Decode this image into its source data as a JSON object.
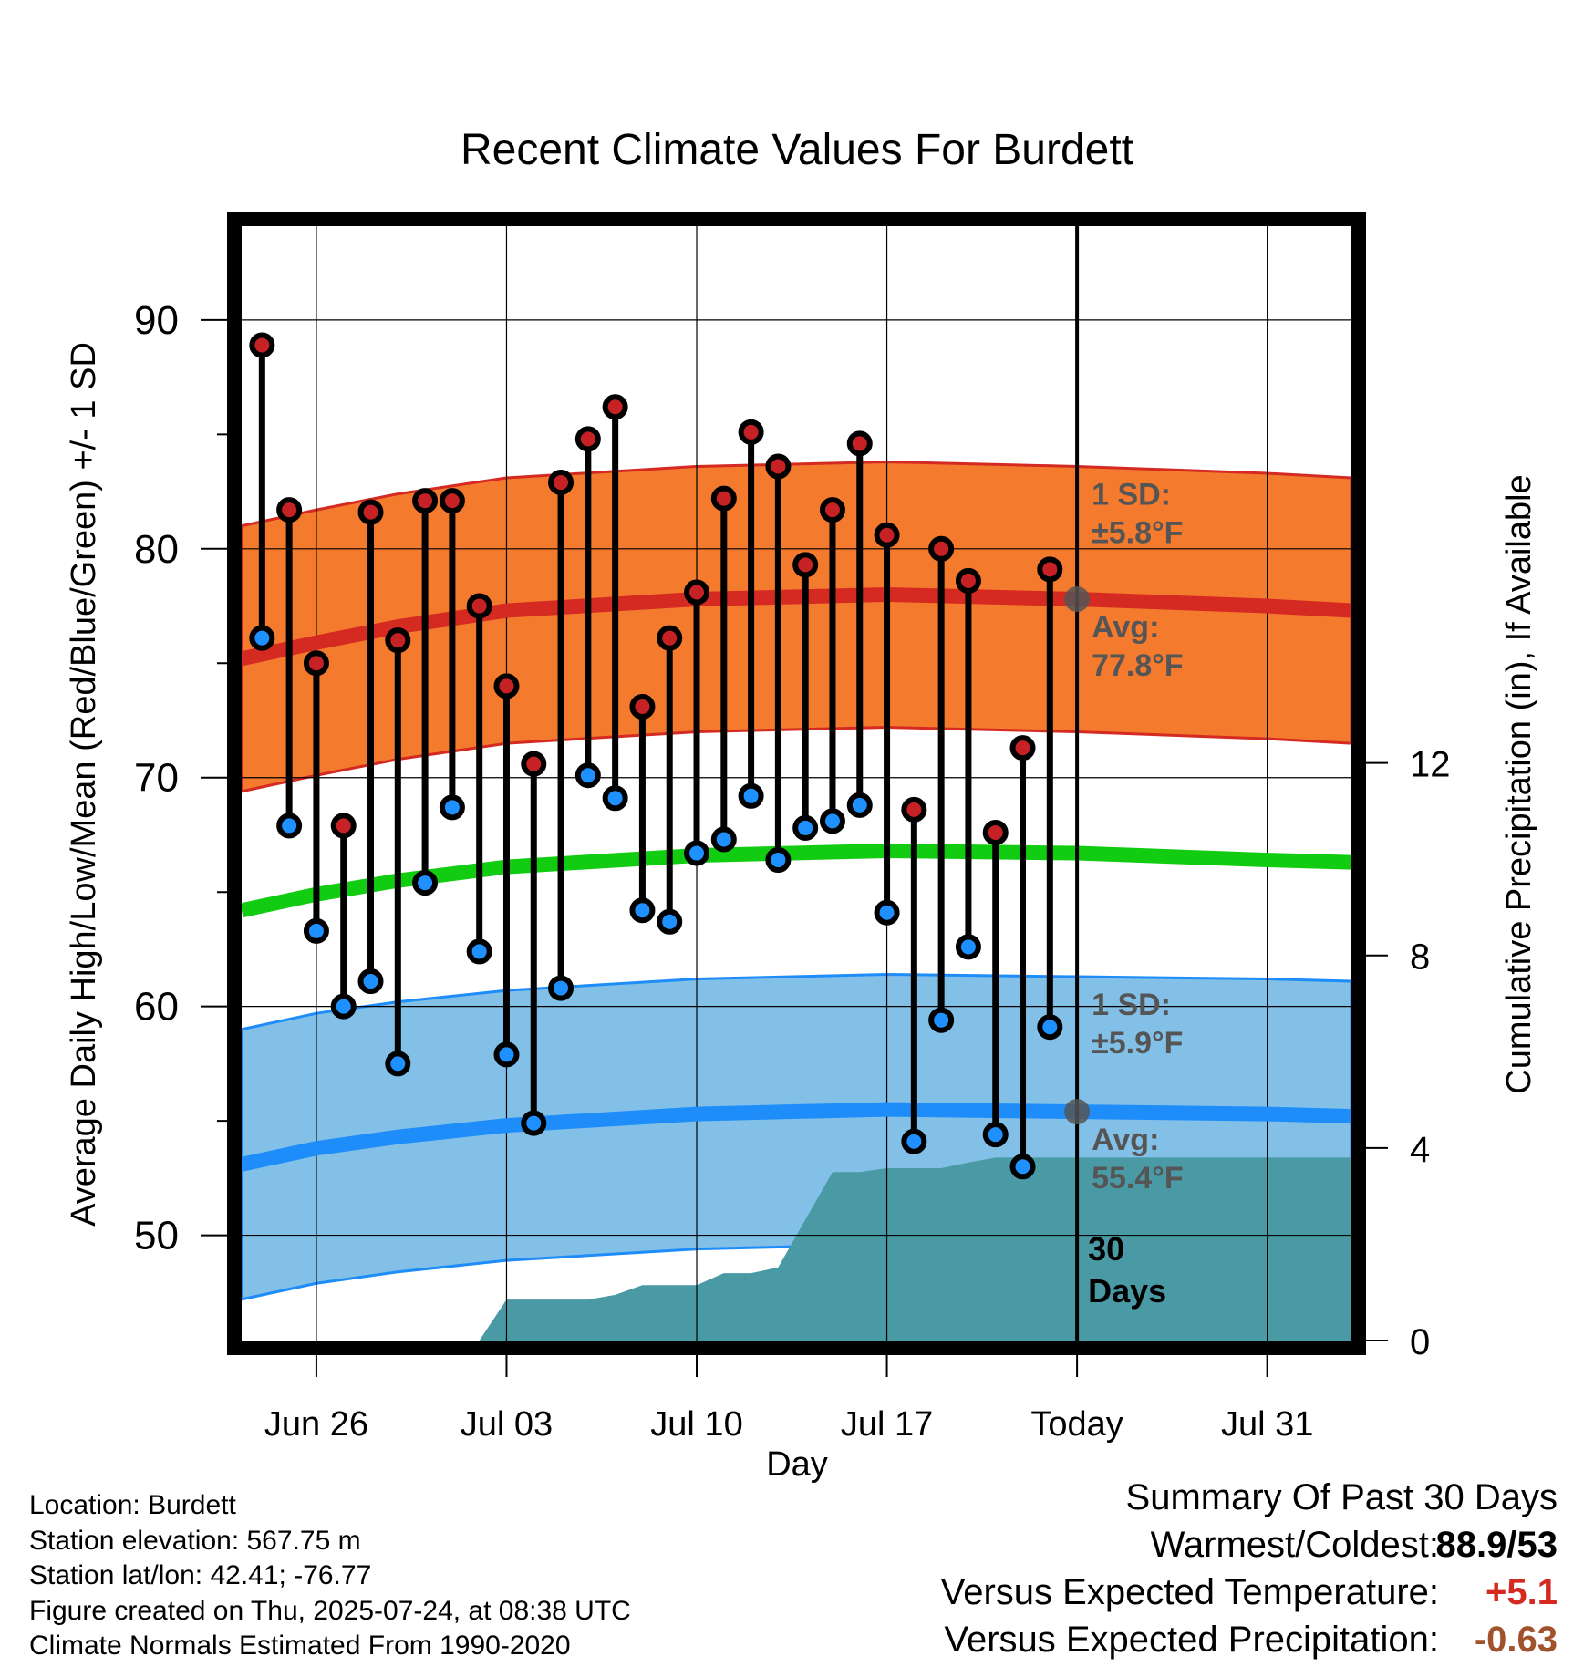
{
  "chart_data": {
    "type": "line",
    "title": "Recent Climate Values For Burdett",
    "xlabel": "Day",
    "ylabel": "Average Daily High/Low/Mean (Red/Blue/Green) +/- 1 SD",
    "y2label": "Cumulative Precipitation (in), If Available",
    "x_tick_labels": [
      "Jun 26",
      "Jul 03",
      "Jul 10",
      "Jul 17",
      "Today",
      "Jul 31"
    ],
    "x_ticks_day_index": [
      3,
      10,
      17,
      24,
      31,
      38
    ],
    "xlim_day_index": [
      0.25,
      41.1
    ],
    "y_ticks": [
      50,
      60,
      70,
      80,
      90
    ],
    "ylim": [
      45.4,
      94.1
    ],
    "y2_ticks": [
      0,
      4,
      8,
      12
    ],
    "y2lim": [
      0,
      23.15
    ],
    "grid": true,
    "today_day_index": 31,
    "window_label": [
      "30",
      "Days"
    ],
    "days_index": [
      1,
      2,
      3,
      4,
      5,
      6,
      7,
      8,
      9,
      10,
      11,
      12,
      13,
      14,
      15,
      16,
      17,
      18,
      19,
      20,
      21,
      22,
      23,
      24,
      25,
      26,
      27,
      28,
      29,
      30
    ],
    "highs": [
      88.9,
      81.7,
      75.0,
      67.9,
      81.6,
      76.0,
      82.1,
      82.1,
      77.5,
      74.0,
      70.6,
      82.9,
      84.8,
      86.2,
      73.1,
      76.1,
      78.1,
      82.2,
      85.1,
      83.6,
      79.3,
      81.7,
      84.6,
      80.6,
      68.6,
      80.0,
      78.6,
      67.6,
      71.3,
      79.1
    ],
    "lows": [
      76.1,
      67.9,
      63.3,
      60.0,
      61.1,
      57.5,
      65.4,
      68.7,
      62.4,
      57.9,
      54.9,
      60.8,
      70.1,
      69.1,
      64.2,
      63.7,
      66.7,
      67.3,
      69.2,
      66.4,
      67.8,
      68.1,
      68.8,
      64.1,
      54.1,
      59.4,
      62.6,
      54.4,
      53.0,
      59.1
    ],
    "normal_day_index": [
      0.25,
      3,
      6,
      10,
      17,
      24,
      31,
      38,
      41.1
    ],
    "normal_high": [
      75.2,
      75.9,
      76.6,
      77.3,
      77.8,
      78.0,
      77.8,
      77.5,
      77.3
    ],
    "normal_high_sd": 5.8,
    "normal_mean": [
      64.2,
      64.9,
      65.5,
      66.1,
      66.6,
      66.8,
      66.7,
      66.4,
      66.3
    ],
    "normal_low": [
      53.1,
      53.8,
      54.3,
      54.8,
      55.3,
      55.5,
      55.4,
      55.3,
      55.2
    ],
    "normal_low_sd": 5.9,
    "precip_day_index": [
      0.25,
      9,
      10,
      13,
      14,
      15,
      16,
      17,
      18,
      19,
      20,
      22,
      23,
      24,
      26,
      27,
      28,
      29,
      30,
      31,
      41.1
    ],
    "precip_cum": [
      0,
      0,
      0.85,
      0.85,
      0.95,
      1.15,
      1.15,
      1.15,
      1.4,
      1.4,
      1.52,
      3.5,
      3.5,
      3.58,
      3.58,
      3.7,
      3.8,
      3.8,
      3.8,
      3.8,
      3.8
    ],
    "annotations": {
      "high_sd_label": "1 SD:",
      "high_sd_value": "±5.8°F",
      "high_avg_label": "Avg:",
      "high_avg_value": "77.8°F",
      "low_sd_label": "1 SD:",
      "low_sd_value": "±5.9°F",
      "low_avg_label": "Avg:",
      "low_avg_value": "55.4°F"
    },
    "colors": {
      "high_band": "#f47a2e",
      "high_line": "#d42a22",
      "mean_line": "#11cc11",
      "low_band": "#82c0e7",
      "low_line": "#1e8dfa",
      "precip": "#4a9aa6",
      "high_dot": "#c62226",
      "low_dot": "#1e90ff",
      "annotation_text": "#555555"
    }
  },
  "meta": {
    "location": "Location: Burdett",
    "elevation": "Station elevation: 567.75 m",
    "latlon": "Station lat/lon: 42.41; -76.77",
    "created": "Figure created on Thu, 2025-07-24, at 08:38 UTC",
    "normals": "Climate Normals Estimated From 1990-2020"
  },
  "summary": {
    "title": "Summary Of Past 30 Days",
    "warm_cold_label": "Warmest/Coldest:",
    "warm_cold_value": "88.9/53",
    "temp_label": "Versus Expected Temperature:",
    "temp_value": "+5.1",
    "temp_color": "#d42a22",
    "precip_label": "Versus Expected Precipitation:",
    "precip_value": "-0.63",
    "precip_color": "#a0522d"
  }
}
